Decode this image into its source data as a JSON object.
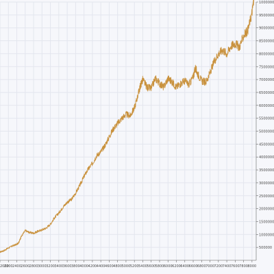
{
  "chart_data": {
    "type": "line",
    "title": "",
    "xlabel": "",
    "ylabel": "",
    "grid": true,
    "ylim": [
      0,
      10000000
    ],
    "xlim": [
      2000,
      8100
    ],
    "x_ticks": [
      {
        "value": 2000,
        "label": "2000"
      },
      {
        "value": 2200,
        "label": "2200"
      },
      {
        "value": 2400,
        "label": "2400"
      },
      {
        "value": 2600,
        "label": "2600"
      },
      {
        "value": 2800,
        "label": "2800"
      },
      {
        "value": 3000,
        "label": "3000"
      },
      {
        "value": 3200,
        "label": "3200"
      },
      {
        "value": 3400,
        "label": "3400"
      },
      {
        "value": 3600,
        "label": "3600"
      },
      {
        "value": 3800,
        "label": "3800"
      },
      {
        "value": 4000,
        "label": "4000"
      },
      {
        "value": 4200,
        "label": "4200"
      },
      {
        "value": 4400,
        "label": "4400"
      },
      {
        "value": 4600,
        "label": "4600"
      },
      {
        "value": 4800,
        "label": "4800"
      },
      {
        "value": 5000,
        "label": "5000"
      },
      {
        "value": 5200,
        "label": "5200"
      },
      {
        "value": 5400,
        "label": "5400"
      },
      {
        "value": 5600,
        "label": "5600"
      },
      {
        "value": 5800,
        "label": "5800"
      },
      {
        "value": 6000,
        "label": "6000"
      },
      {
        "value": 6200,
        "label": "6200"
      },
      {
        "value": 6400,
        "label": "6400"
      },
      {
        "value": 6600,
        "label": "6600"
      },
      {
        "value": 6800,
        "label": "6800"
      },
      {
        "value": 7000,
        "label": "7000"
      },
      {
        "value": 7200,
        "label": "7200"
      },
      {
        "value": 7400,
        "label": "7400"
      },
      {
        "value": 7600,
        "label": "7600"
      },
      {
        "value": 7800,
        "label": "7800"
      },
      {
        "value": 8000,
        "label": "8000"
      }
    ],
    "y_ticks": [
      {
        "value": 500000,
        "label": "500000"
      },
      {
        "value": 1000000,
        "label": "1000000"
      },
      {
        "value": 1500000,
        "label": "1500000"
      },
      {
        "value": 2000000,
        "label": "2000000"
      },
      {
        "value": 2500000,
        "label": "2500000"
      },
      {
        "value": 3000000,
        "label": "3000000"
      },
      {
        "value": 3500000,
        "label": "3500000"
      },
      {
        "value": 4000000,
        "label": "4000000"
      },
      {
        "value": 4500000,
        "label": "4500000"
      },
      {
        "value": 5000000,
        "label": "5000000"
      },
      {
        "value": 5500000,
        "label": "5500000"
      },
      {
        "value": 6000000,
        "label": "6000000"
      },
      {
        "value": 6500000,
        "label": "6500000"
      },
      {
        "value": 7000000,
        "label": "7000000"
      },
      {
        "value": 7500000,
        "label": "7500000"
      },
      {
        "value": 8000000,
        "label": "8000000"
      },
      {
        "value": 8500000,
        "label": "8500000"
      },
      {
        "value": 9000000,
        "label": "9000000"
      },
      {
        "value": 9500000,
        "label": "9500000"
      },
      {
        "value": 10000000,
        "label": "10000000"
      }
    ],
    "series": [
      {
        "color": "#c9923e",
        "x": [
          2000,
          2100,
          2200,
          2300,
          2400,
          2450,
          2500,
          2600,
          2700,
          2800,
          2900,
          3000,
          3100,
          3200,
          3300,
          3400,
          3500,
          3600,
          3700,
          3800,
          3900,
          4000,
          4100,
          4200,
          4300,
          4400,
          4500,
          4600,
          4700,
          4800,
          4900,
          5000,
          5100,
          5200,
          5300,
          5350,
          5400,
          5500,
          5600,
          5700,
          5800,
          5900,
          6000,
          6100,
          6200,
          6300,
          6400,
          6500,
          6600,
          6650,
          6700,
          6800,
          6900,
          7000,
          7100,
          7200,
          7300,
          7400,
          7500,
          7600,
          7700,
          7800,
          7900,
          8000,
          8050
        ],
        "y": [
          320000,
          380000,
          480000,
          560000,
          620000,
          700000,
          900000,
          1150000,
          1080000,
          1050000,
          1120000,
          1180000,
          1250000,
          1400000,
          1650000,
          1830000,
          2060000,
          2250000,
          2350000,
          2600000,
          2900000,
          3250000,
          3530000,
          3750000,
          4050000,
          4200000,
          4450000,
          4780000,
          5100000,
          5300000,
          5500000,
          5650000,
          5600000,
          5900000,
          6500000,
          6800000,
          7000000,
          6700000,
          6650000,
          7050000,
          6850000,
          6700000,
          7050000,
          6900000,
          6700000,
          6850000,
          6950000,
          6800000,
          7100000,
          7450000,
          7250000,
          6950000,
          6900000,
          7250000,
          7700000,
          8000000,
          8150000,
          8000000,
          8300000,
          8400000,
          8250000,
          8700000,
          8900000,
          9600000,
          10200000
        ]
      }
    ]
  }
}
